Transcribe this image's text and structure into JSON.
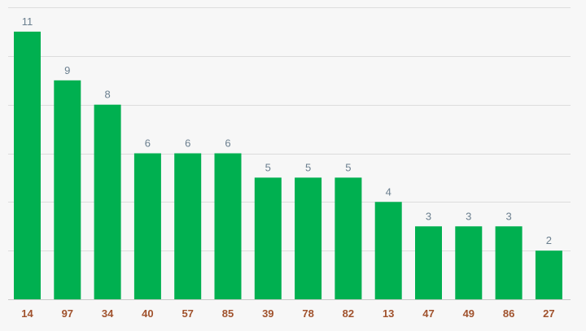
{
  "chart_data": {
    "type": "bar",
    "categories": [
      "14",
      "97",
      "34",
      "40",
      "57",
      "85",
      "39",
      "78",
      "82",
      "13",
      "47",
      "49",
      "86",
      "27"
    ],
    "values": [
      11,
      9,
      8,
      6,
      6,
      6,
      5,
      5,
      5,
      4,
      3,
      3,
      3,
      2
    ],
    "title": "",
    "xlabel": "",
    "ylabel": "",
    "ylim": [
      0,
      12
    ],
    "grid": true,
    "legend": "none"
  },
  "colors": {
    "bar": "#00b050",
    "value_label": "#6b7f8f",
    "tick_label": "#a0522d",
    "background": "#f7f7f7",
    "grid": "#dcdcdc"
  }
}
